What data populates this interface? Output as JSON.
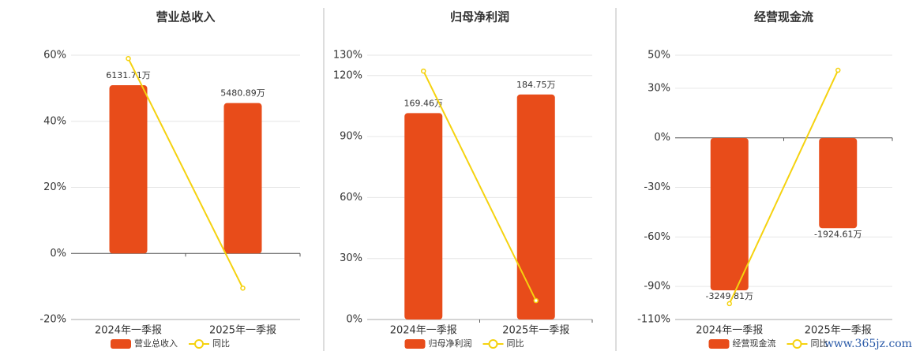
{
  "chart_data": [
    {
      "type": "bar",
      "title": "营业总收入",
      "categories": [
        "2024年一季报",
        "2025年一季报"
      ],
      "series": [
        {
          "name": "营业总收入",
          "color": "#e84c1a",
          "axis": "y2",
          "values": [
            6131.71,
            5480.89
          ],
          "value_labels": [
            "6131.71万",
            "5480.89万"
          ]
        },
        {
          "name": "同比",
          "color": "#f5d20f",
          "type": "line",
          "values": [
            59,
            -10.5
          ]
        }
      ],
      "ylim": [
        -20,
        60
      ],
      "yticks": [
        {
          "value": 60,
          "label": "60%"
        },
        {
          "value": 40,
          "label": "40%"
        },
        {
          "value": 20,
          "label": "20%"
        },
        {
          "value": 0,
          "label": "0%"
        },
        {
          "value": -20,
          "label": "-20%"
        }
      ],
      "y2lim": [
        -2408,
        7225
      ],
      "grid": true
    },
    {
      "type": "bar",
      "title": "归母净利润",
      "categories": [
        "2024年一季报",
        "2025年一季报"
      ],
      "series": [
        {
          "name": "归母净利润",
          "color": "#e84c1a",
          "axis": "y2",
          "values": [
            169.46,
            184.75
          ],
          "value_labels": [
            "169.46万",
            "184.75万"
          ]
        },
        {
          "name": "同比",
          "color": "#f5d20f",
          "type": "line",
          "values": [
            122.2,
            9.3
          ]
        }
      ],
      "ylim": [
        0,
        130
      ],
      "yticks": [
        {
          "value": 130,
          "label": "130%"
        },
        {
          "value": 120,
          "label": "120%"
        },
        {
          "value": 90,
          "label": "90%"
        },
        {
          "value": 60,
          "label": "60%"
        },
        {
          "value": 30,
          "label": "30%"
        },
        {
          "value": 0,
          "label": "0%"
        }
      ],
      "y2lim": [
        0,
        217
      ],
      "grid": true
    },
    {
      "type": "bar",
      "title": "经营现金流",
      "categories": [
        "2024年一季报",
        "2025年一季报"
      ],
      "series": [
        {
          "name": "经营现金流",
          "color": "#e84c1a",
          "axis": "y2",
          "values": [
            -3249.81,
            -1924.61
          ],
          "value_labels": [
            "-3249.81万",
            "-1924.61万"
          ]
        },
        {
          "name": "同比",
          "color": "#f5d20f",
          "type": "line",
          "values": [
            -100.4,
            40.9
          ]
        }
      ],
      "ylim": [
        -110,
        50
      ],
      "yticks": [
        {
          "value": 50,
          "label": "50%"
        },
        {
          "value": 30,
          "label": "30%"
        },
        {
          "value": 0,
          "label": "0%"
        },
        {
          "value": -30,
          "label": "-30%"
        },
        {
          "value": -60,
          "label": "-60%"
        },
        {
          "value": -90,
          "label": "-90%"
        },
        {
          "value": -110,
          "label": "-110%"
        }
      ],
      "y2lim": [
        -3873,
        1768
      ],
      "grid": true
    }
  ],
  "watermark": "www.365jz.com"
}
